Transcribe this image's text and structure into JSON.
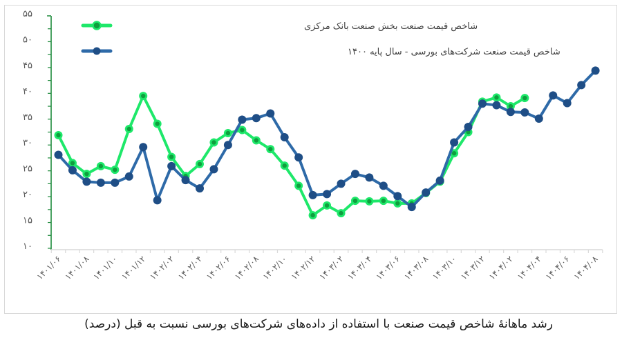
{
  "caption": "رشد ماهانهٔ شاخص قیمت صنعت با استفاده از داده‌های شرکت‌های بورسی نسبت به قبل (درصد)",
  "colors": {
    "series_green": "#1ee86a",
    "series_green_marker": "#0f9e3e",
    "series_blue": "#2e6aa8",
    "series_blue_marker": "#1f4e86",
    "y_axis": "#1e8a3c",
    "x_axis": "#d9d9d9",
    "tick_text": "#595959"
  },
  "chart_data": {
    "type": "line",
    "title": "",
    "xlabel": "",
    "ylabel": "",
    "ylim": [
      10,
      55
    ],
    "yticks": [
      10,
      15,
      20,
      25,
      30,
      35,
      40,
      45,
      50,
      55
    ],
    "ytick_labels": [
      "۱۰",
      "۱۵",
      "۲۰",
      "۲۵",
      "۳۰",
      "۳۵",
      "۴۰",
      "۴۵",
      "۵۰",
      "۵۵"
    ],
    "grid": false,
    "legend_position": "top-left",
    "categories": [
      "1401/06",
      "1401/07",
      "1401/08",
      "1401/09",
      "1401/10",
      "1401/11",
      "1401/12",
      "1402/01",
      "1402/02",
      "1402/03",
      "1402/04",
      "1402/05",
      "1402/06",
      "1402/07",
      "1402/08",
      "1402/09",
      "1402/10",
      "1402/11",
      "1402/12",
      "1403/01",
      "1403/02",
      "1403/03",
      "1403/04",
      "1403/05",
      "1403/06",
      "1403/07",
      "1403/08",
      "1403/09",
      "1403/10",
      "1403/11",
      "1403/12",
      "1404/01",
      "1404/02",
      "1404/03",
      "1404/04",
      "1404/05",
      "1404/06",
      "1404/07",
      "1404/08"
    ],
    "x_tick_labels": [
      {
        "index": 0,
        "label": "۱۴۰۱/۰۶"
      },
      {
        "index": 2,
        "label": "۱۴۰۱/۰۸"
      },
      {
        "index": 4,
        "label": "۱۴۰۱/۱۰"
      },
      {
        "index": 6,
        "label": "۱۴۰۱/۱۲"
      },
      {
        "index": 8,
        "label": "۱۴۰۲/۰۲"
      },
      {
        "index": 10,
        "label": "۱۴۰۲/۰۴"
      },
      {
        "index": 12,
        "label": "۱۴۰۲/۰۶"
      },
      {
        "index": 14,
        "label": "۱۴۰۲/۰۸"
      },
      {
        "index": 16,
        "label": "۱۴۰۲/۱۰"
      },
      {
        "index": 18,
        "label": "۱۴۰۲/۱۲"
      },
      {
        "index": 20,
        "label": "۱۴۰۳/۰۲"
      },
      {
        "index": 22,
        "label": "۱۴۰۳/۰۴"
      },
      {
        "index": 24,
        "label": "۱۴۰۳/۰۶"
      },
      {
        "index": 26,
        "label": "۱۴۰۳/۰۸"
      },
      {
        "index": 28,
        "label": "۱۴۰۳/۱۰"
      },
      {
        "index": 30,
        "label": "۱۴۰۳/۱۲"
      },
      {
        "index": 32,
        "label": "۱۴۰۴/۰۲"
      },
      {
        "index": 34,
        "label": "۱۴۰۴/۰۴"
      },
      {
        "index": 36,
        "label": "۱۴۰۴/۰۶"
      },
      {
        "index": 38,
        "label": "۱۴۰۴/۰۸"
      }
    ],
    "series": [
      {
        "name": "شاخص قیمت صنعت بخش صنعت بانک مرکزی",
        "color": "#1ee86a",
        "values": [
          31.9,
          26.5,
          24.4,
          25.9,
          25.2,
          33.1,
          39.5,
          34.1,
          27.7,
          24.0,
          26.3,
          30.5,
          32.3,
          32.9,
          30.9,
          29.2,
          26.0,
          22.1,
          16.4,
          18.3,
          16.8,
          19.2,
          19.1,
          19.2,
          18.7,
          18.7,
          20.7,
          22.9,
          28.4,
          32.5,
          38.4,
          39.2,
          37.5,
          39.1,
          null,
          null,
          null,
          null,
          null
        ]
      },
      {
        "name": "شاخص قیمت صنعت - شرکت‌های بورسی - سال پایه ۱۴۰۰",
        "color": "#2e6aa8",
        "values": [
          28.1,
          25.1,
          22.9,
          22.7,
          22.7,
          23.9,
          29.6,
          19.3,
          25.9,
          23.2,
          21.6,
          25.3,
          30.0,
          34.9,
          35.2,
          36.1,
          31.5,
          27.6,
          20.3,
          20.5,
          22.5,
          24.4,
          23.7,
          22.1,
          20.1,
          18.0,
          20.8,
          23.1,
          30.5,
          33.5,
          38.0,
          37.7,
          36.4,
          36.3,
          35.1,
          39.6,
          38.1,
          41.6,
          44.4
        ]
      }
    ]
  },
  "legend": {
    "items": [
      {
        "label": "شاخص قیمت صنعت بخش صنعت بانک مرکزی"
      },
      {
        "label": "شاخص قیمت صنعت  شرکت‌های بورسی - سال پایه ۱۴۰۰"
      }
    ]
  }
}
